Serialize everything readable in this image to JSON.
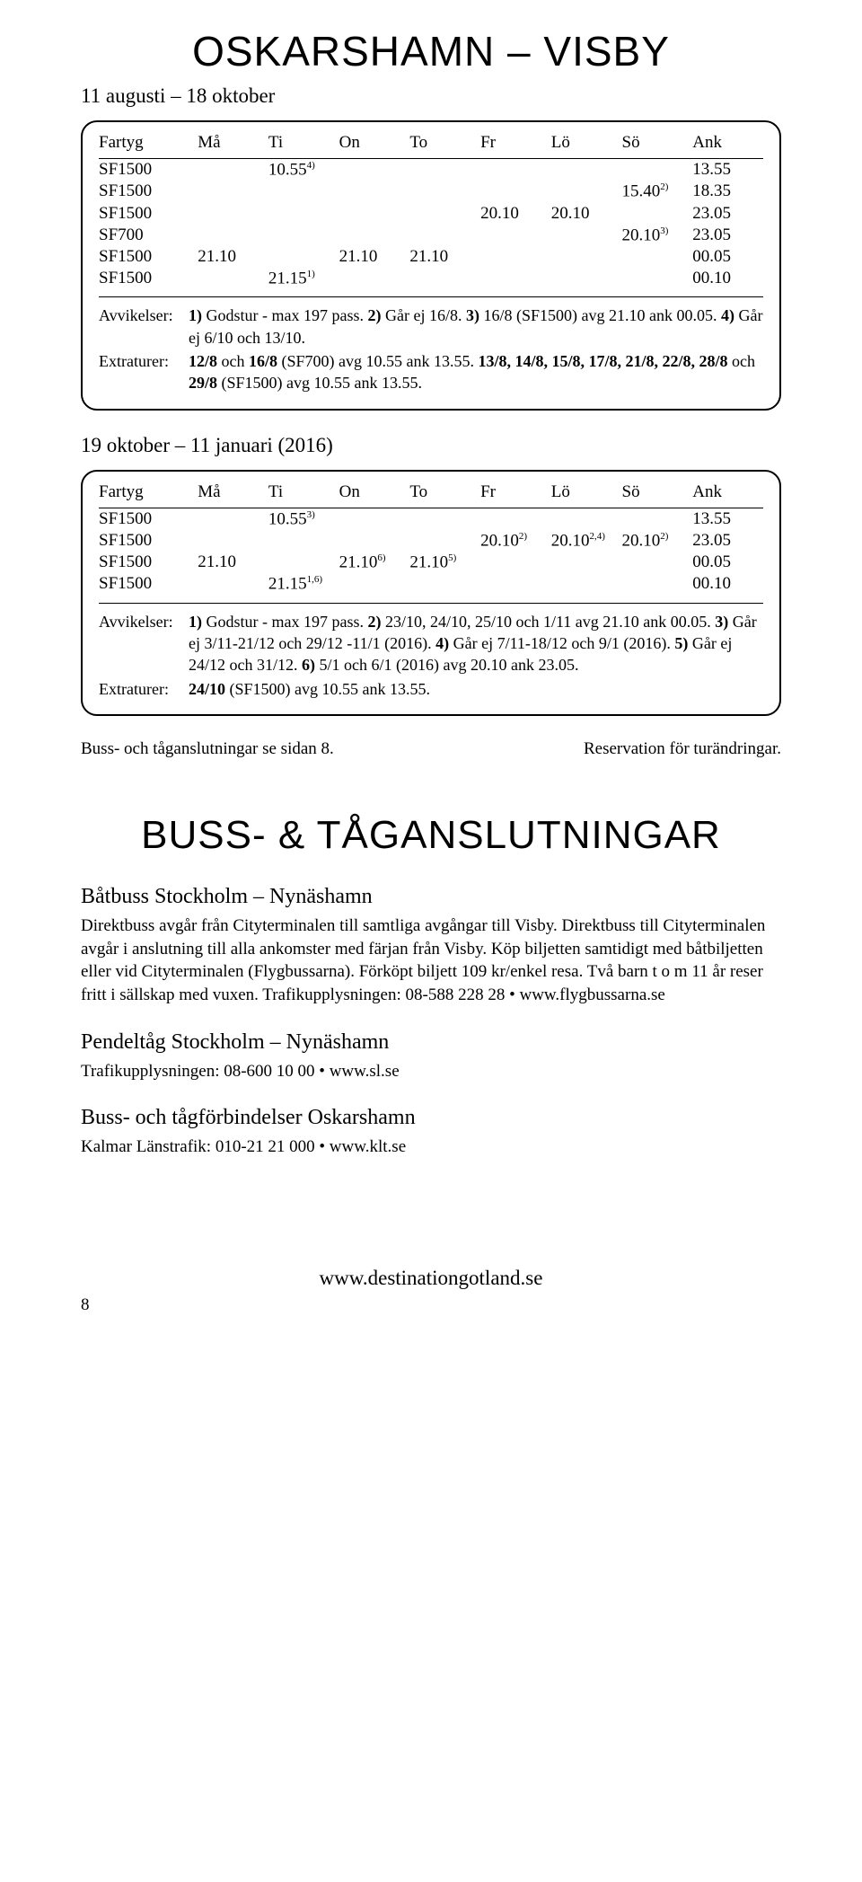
{
  "page": {
    "title": "OSKARSHAMN – VISBY",
    "title_fontsize": "46px",
    "section_title": "BUSS- & TÅGANSLUTNINGAR",
    "footer_url": "www.destinationgotland.se",
    "page_number": "8"
  },
  "schedule1": {
    "subtitle": "11 augusti – 18 oktober",
    "headers": [
      "Fartyg",
      "Må",
      "Ti",
      "On",
      "To",
      "Fr",
      "Lö",
      "Sö",
      "Ank"
    ],
    "rows": [
      {
        "c": [
          "SF1500",
          "",
          "10.55",
          "",
          "",
          "",
          "",
          "",
          "13.55"
        ],
        "sup": {
          "2": "4)"
        }
      },
      {
        "c": [
          "SF1500",
          "",
          "",
          "",
          "",
          "",
          "",
          "15.40",
          "18.35"
        ],
        "sup": {
          "7": "2)"
        }
      },
      {
        "c": [
          "SF1500",
          "",
          "",
          "",
          "",
          "20.10",
          "20.10",
          "",
          "23.05"
        ]
      },
      {
        "c": [
          "SF700",
          "",
          "",
          "",
          "",
          "",
          "",
          "20.10",
          "23.05"
        ],
        "sup": {
          "7": "3)"
        }
      },
      {
        "c": [
          "SF1500",
          "21.10",
          "",
          "21.10",
          "21.10",
          "",
          "",
          "",
          "00.05"
        ]
      },
      {
        "c": [
          "SF1500",
          "",
          "21.15",
          "",
          "",
          "",
          "",
          "",
          "00.10"
        ],
        "sup": {
          "2": "1)"
        }
      }
    ],
    "notes": [
      {
        "label": "Avvikelser:",
        "text": "<b>1)</b> Godstur - max 197 pass. <b>2)</b> Går ej 16/8. <b>3)</b> 16/8 (SF1500) avg 21.10 ank 00.05. <b>4)</b> Går ej 6/10 och 13/10."
      },
      {
        "label": "Extraturer:",
        "text": "<b>12/8</b> och <b>16/8</b> (SF700) avg 10.55 ank 13.55. <b>13/8, 14/8, 15/8, 17/8, 21/8, 22/8, 28/8</b> och <b>29/8</b> (SF1500) avg 10.55 ank 13.55."
      }
    ]
  },
  "schedule2": {
    "subtitle": "19 oktober – 11 januari (2016)",
    "headers": [
      "Fartyg",
      "Må",
      "Ti",
      "On",
      "To",
      "Fr",
      "Lö",
      "Sö",
      "Ank"
    ],
    "rows": [
      {
        "c": [
          "SF1500",
          "",
          "10.55",
          "",
          "",
          "",
          "",
          "",
          "13.55"
        ],
        "sup": {
          "2": "3)"
        }
      },
      {
        "c": [
          "SF1500",
          "",
          "",
          "",
          "",
          "20.10",
          "20.10",
          "20.10",
          "23.05"
        ],
        "sup": {
          "5": "2)",
          "6": "2,4)",
          "7": "2)"
        }
      },
      {
        "c": [
          "SF1500",
          "21.10",
          "",
          "21.10",
          "21.10",
          "",
          "",
          "",
          "00.05"
        ],
        "sup": {
          "3": "6)",
          "4": "5)"
        }
      },
      {
        "c": [
          "SF1500",
          "",
          "21.15",
          "",
          "",
          "",
          "",
          "",
          "00.10"
        ],
        "sup": {
          "2": "1,6)"
        }
      }
    ],
    "notes": [
      {
        "label": "Avvikelser:",
        "text": "<b>1)</b> Godstur - max 197 pass. <b>2)</b> 23/10, 24/10, 25/10 och 1/11 avg 21.10 ank 00.05. <b>3)</b> Går ej 3/11-21/12 och 29/12 -11/1 (2016). <b>4)</b> Går ej 7/11-18/12 och 9/1 (2016). <b>5)</b> Går ej 24/12 och 31/12. <b>6)</b> 5/1 och 6/1 (2016) avg 20.10 ank 23.05."
      },
      {
        "label": "Extraturer:",
        "text": "<b>24/10</b> (SF1500) avg 10.55 ank 13.55."
      }
    ]
  },
  "footrow": {
    "left": "Buss- och tåganslutningar se sidan 8.",
    "right": "Reservation för turändringar."
  },
  "connections": [
    {
      "head": "Båtbuss Stockholm – Nynäshamn",
      "body": "Direktbuss avgår från Cityterminalen till samtliga avgångar till Visby. Direktbuss till Cityterminalen avgår i anslutning till alla ankomster med färjan från Visby. Köp biljetten samtidigt med båtbiljetten eller vid Cityterminalen (Flygbussarna). Förköpt biljett 109 kr/enkel resa. Två barn t o m 11 år reser fritt i sällskap med vuxen. Trafikupplysningen: 08-588 228 28 • www.flygbussarna.se"
    },
    {
      "head": "Pendeltåg Stockholm – Nynäshamn",
      "body": "Trafikupplysningen: 08-600 10 00 • www.sl.se"
    },
    {
      "head": "Buss- och tågförbindelser Oskarshamn",
      "body": "Kalmar Länstrafik: 010-21 21 000 • www.klt.se"
    }
  ]
}
